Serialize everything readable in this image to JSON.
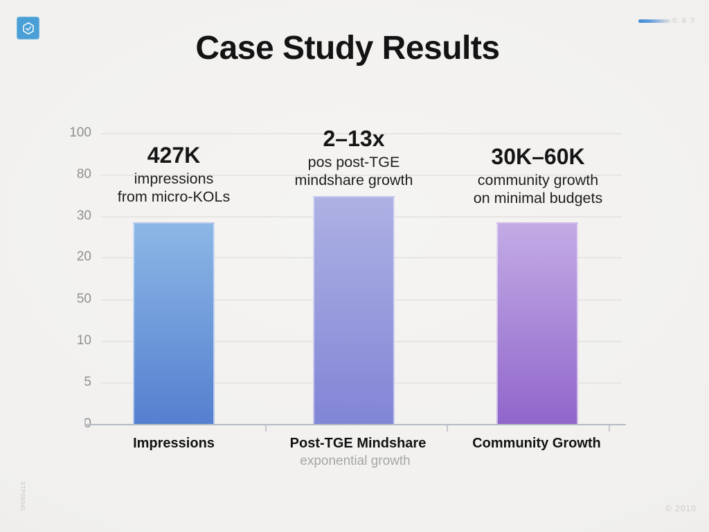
{
  "page": {
    "title": "Case Study Results"
  },
  "header": {
    "meta_text": "© 6 7"
  },
  "footer": {
    "watermark": "STP0B345",
    "copyright": "© 2010"
  },
  "colors": {
    "background": "#f1f0ee",
    "title": "#131313",
    "axis": "#b6bbc4",
    "gridline": "#e6e5e3",
    "tick_label": "#8f8f8f",
    "category_subtitle": "#a6a6a6",
    "logo_blue": "#4aa0d6",
    "progress_blue": "#3f8ad6"
  },
  "chart_data": {
    "type": "bar",
    "title": "Case Study Results",
    "categories": [
      "Impressions",
      "Post-TGE Mindshare",
      "Community Growth"
    ],
    "category_subtitles": [
      "",
      "exponential growth",
      ""
    ],
    "values": [
      69.3,
      78.3,
      69.3
    ],
    "ylim": [
      0,
      100
    ],
    "ytick_labels": [
      "100",
      "80",
      "30",
      "20",
      "50",
      "10",
      "5",
      "0"
    ],
    "grid": true,
    "legend": false,
    "xlabel": "",
    "ylabel": "",
    "bar_annotations": [
      {
        "headline": "427K",
        "line1": "impressions",
        "line2": "from micro-KOLs"
      },
      {
        "headline": "2–13x",
        "line1": "pos post-TGE",
        "line2": "mindshare growth"
      },
      {
        "headline": "30K–60K",
        "line1": "community growth",
        "line2": "on minimal budgets"
      }
    ],
    "bar_colors": [
      {
        "top": "#8cb7e6",
        "bottom": "#5480cf"
      },
      {
        "top": "#adb1e3",
        "bottom": "#8185d6"
      },
      {
        "top": "#c3abe5",
        "bottom": "#9066cb"
      }
    ]
  }
}
